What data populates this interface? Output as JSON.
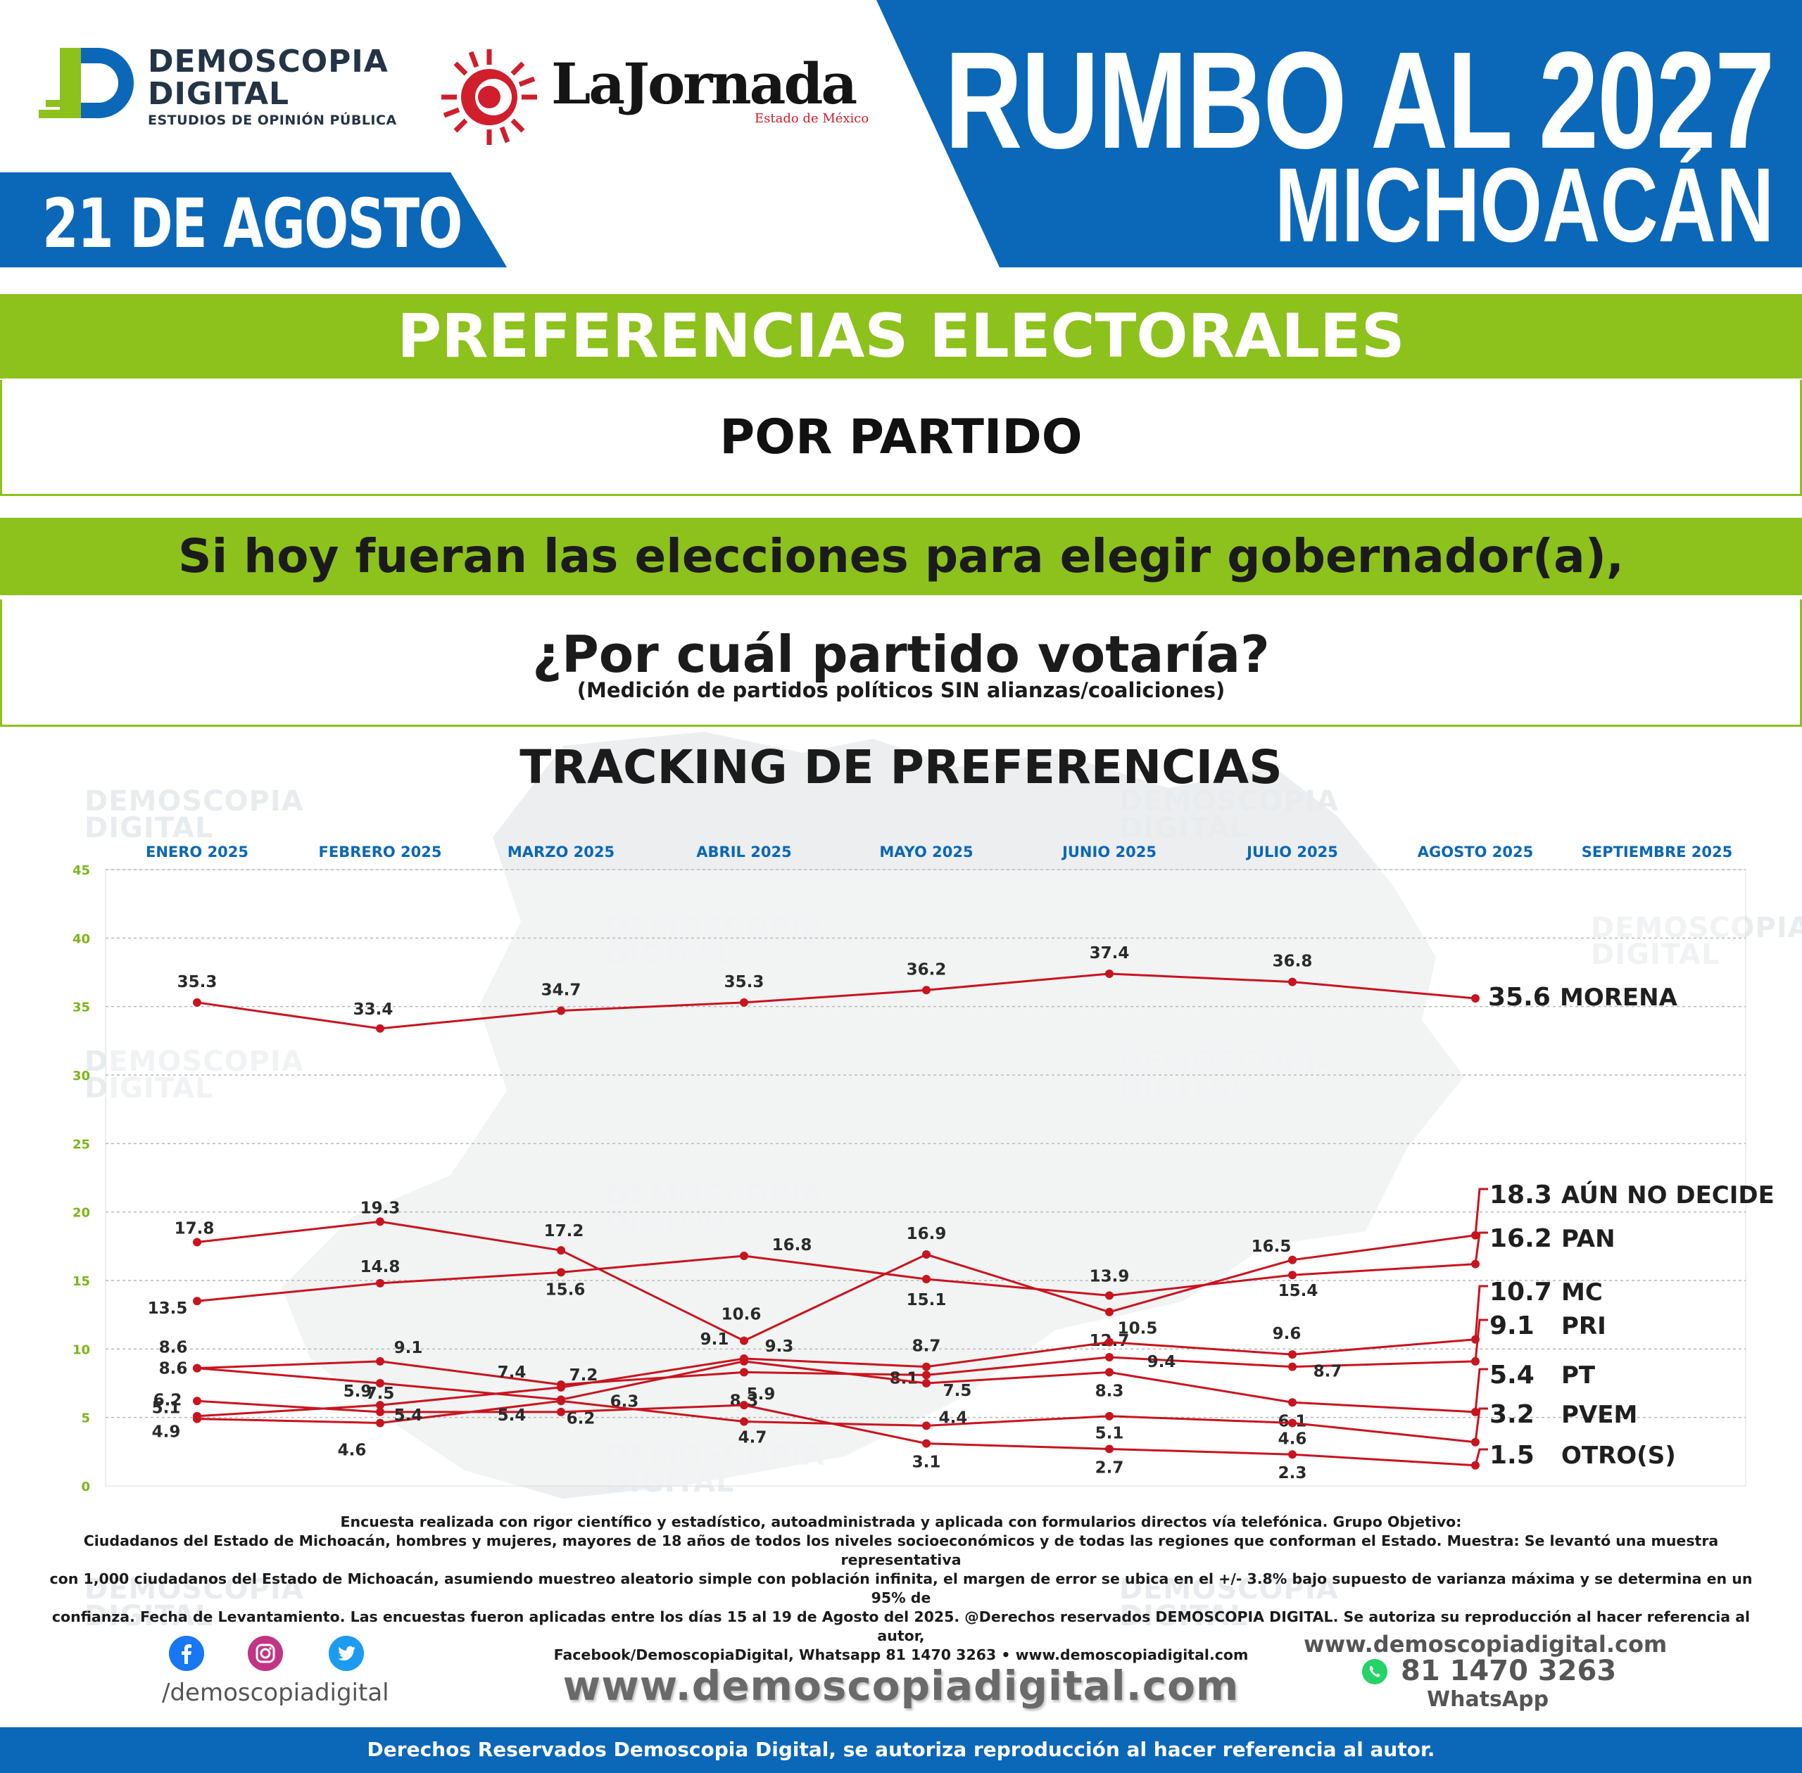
{
  "header": {
    "brand_line1": "DEMOSCOPIA",
    "brand_line2": "DIGITAL",
    "brand_tagline": "ESTUDIOS DE OPINIÓN PÚBLICA",
    "partner_name": "LaJornada",
    "partner_sub": "Estado de México",
    "date": "21 DE AGOSTO",
    "title_line1": "RUMBO AL 2027",
    "title_line2": "MICHOACÁN"
  },
  "section": {
    "title": "PREFERENCIAS ELECTORALES",
    "subtitle": "POR PARTIDO",
    "question_line1": "Si hoy fueran las elecciones para elegir gobernador(a),",
    "question_line2": "¿Por cuál partido votaría?",
    "question_note": "(Medición de partidos políticos SIN alianzas/coaliciones)",
    "chart_title": "TRACKING DE PREFERENCIAS"
  },
  "colors": {
    "blue": "#0b67b8",
    "green": "#8dc11c",
    "line": "#c8141e",
    "axis_tick": "#7cb518",
    "month_label": "#0b67b8"
  },
  "chart_data": {
    "type": "line",
    "months": [
      "ENERO 2025",
      "FEBRERO 2025",
      "MARZO 2025",
      "ABRIL 2025",
      "MAYO 2025",
      "JUNIO 2025",
      "JULIO 2025",
      "AGOSTO 2025",
      "SEPTIEMBRE 2025"
    ],
    "ylim": [
      0,
      45
    ],
    "yticks": [
      0,
      5,
      10,
      15,
      20,
      25,
      30,
      35,
      40,
      45
    ],
    "grid": true,
    "series": [
      {
        "name": "MORENA",
        "values": [
          35.3,
          33.4,
          34.7,
          35.3,
          36.2,
          37.4,
          36.8,
          35.6
        ]
      },
      {
        "name": "AÚN NO DECIDE",
        "values": [
          17.8,
          19.3,
          17.2,
          10.6,
          16.9,
          12.7,
          16.5,
          18.3
        ]
      },
      {
        "name": "PAN",
        "values": [
          13.5,
          14.8,
          15.6,
          16.8,
          15.1,
          13.9,
          15.4,
          16.2
        ]
      },
      {
        "name": "MC",
        "values": [
          5.1,
          5.9,
          7.2,
          9.3,
          8.7,
          10.5,
          9.6,
          10.7
        ]
      },
      {
        "name": "PRI",
        "values": [
          8.6,
          9.1,
          7.4,
          8.3,
          8.1,
          9.4,
          8.7,
          9.1
        ]
      },
      {
        "name": "PT",
        "values": [
          8.6,
          7.5,
          6.3,
          9.1,
          7.5,
          8.3,
          6.1,
          5.4
        ]
      },
      {
        "name": "PVEM",
        "values": [
          4.9,
          4.6,
          6.2,
          4.7,
          4.4,
          5.1,
          4.6,
          3.2
        ]
      },
      {
        "name": "OTRO(S)",
        "values": [
          6.2,
          5.4,
          5.4,
          5.9,
          3.1,
          2.7,
          2.3,
          1.5
        ]
      }
    ]
  },
  "footer": {
    "methodology": [
      "Encuesta realizada con rigor científico y estadístico, autoadministrada y aplicada con formularios directos vía telefónica. Grupo Objetivo:",
      "Ciudadanos del Estado de Michoacán, hombres y mujeres, mayores de 18 años de todos los niveles socioeconómicos y de todas las regiones que conforman el Estado. Muestra: Se levantó una muestra representativa",
      "con 1,000 ciudadanos del Estado de Michoacán, asumiendo muestreo aleatorio simple con población infinita, el margen de error se ubica en el +/- 3.8% bajo supuesto de varianza máxima y se determina en un 95% de",
      "confianza. Fecha de Levantamiento. Las encuestas fueron aplicadas entre los días 15 al 19 de Agosto del 2025. @Derechos reservados DEMOSCOPIA DIGITAL. Se autoriza su reproducción al hacer referencia al autor,",
      "Facebook/DemoscopiaDigital, Whatsapp 81 1470 3263 • www.demoscopiadigital.com"
    ],
    "social_handle": "/demoscopiadigital",
    "website_big": "www.demoscopiadigital.com",
    "website_small": "www.demoscopiadigital.com",
    "whatsapp_number": "81 1470 3263",
    "whatsapp_label": "WhatsApp",
    "rights": "Derechos Reservados Demoscopia Digital, se autoriza reproducción al hacer referencia al autor."
  }
}
